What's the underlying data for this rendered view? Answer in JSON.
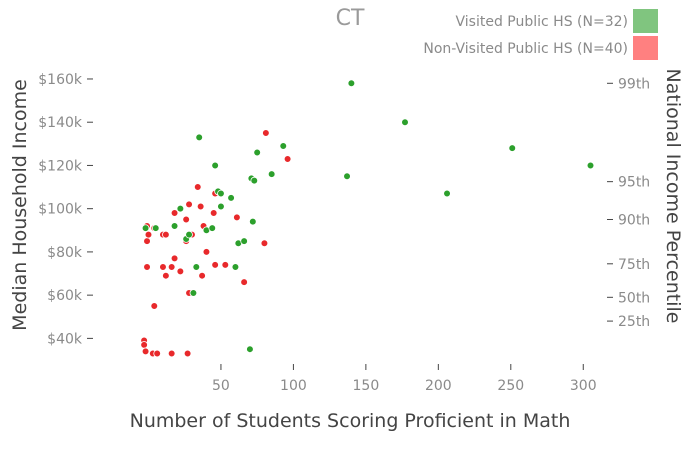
{
  "chart_data": {
    "type": "scatter",
    "title": "CT",
    "xlabel": "Number of Students Scoring Proficient in Math",
    "ylabel": "Median Household Income",
    "y2label": "National Income Percentile",
    "xlim": [
      -30,
      315
    ],
    "ylim": [
      30000,
      166000
    ],
    "x_ticks": [
      50,
      100,
      150,
      200,
      250,
      300
    ],
    "y_ticks": [
      {
        "value": 40000,
        "label": "$40k"
      },
      {
        "value": 60000,
        "label": "$60k"
      },
      {
        "value": 80000,
        "label": "$80k"
      },
      {
        "value": 100000,
        "label": "$100k"
      },
      {
        "value": 120000,
        "label": "$120k"
      },
      {
        "value": 140000,
        "label": "$140k"
      },
      {
        "value": 160000,
        "label": "$160k"
      }
    ],
    "y2_ticks": [
      {
        "value": 158000,
        "label": "99th"
      },
      {
        "value": 112500,
        "label": "95th"
      },
      {
        "value": 95000,
        "label": "90th"
      },
      {
        "value": 74500,
        "label": "75th"
      },
      {
        "value": 59000,
        "label": "50th"
      },
      {
        "value": 48000,
        "label": "25th"
      }
    ],
    "grid": false,
    "legend_position": "top-right",
    "series": [
      {
        "name": "Visited Public HS (N=32)",
        "color": "#2ca02c",
        "legend_color": "#80c57f",
        "points": [
          [
            -2,
            91000
          ],
          [
            5,
            91000
          ],
          [
            18,
            92000
          ],
          [
            26,
            86000
          ],
          [
            28,
            88000
          ],
          [
            22,
            100000
          ],
          [
            33,
            73000
          ],
          [
            31,
            61000
          ],
          [
            40,
            90000
          ],
          [
            44,
            91000
          ],
          [
            48,
            108000
          ],
          [
            50,
            101000
          ],
          [
            50,
            107000
          ],
          [
            46,
            120000
          ],
          [
            35,
            133000
          ],
          [
            57,
            105000
          ],
          [
            60,
            73000
          ],
          [
            62,
            84000
          ],
          [
            66,
            85000
          ],
          [
            70,
            35000
          ],
          [
            71,
            114000
          ],
          [
            73,
            113000
          ],
          [
            75,
            126000
          ],
          [
            72,
            94000
          ],
          [
            85,
            116000
          ],
          [
            93,
            129000
          ],
          [
            137,
            115000
          ],
          [
            140,
            158000
          ],
          [
            177,
            140000
          ],
          [
            206,
            107000
          ],
          [
            251,
            128000
          ],
          [
            305,
            120000
          ]
        ]
      },
      {
        "name": "Non-Visited Public HS (N=40)",
        "color": "#e8292b",
        "legend_color": "#ff8080",
        "points": [
          [
            -3,
            39000
          ],
          [
            -3,
            37000
          ],
          [
            -2,
            34000
          ],
          [
            3,
            33000
          ],
          [
            6,
            33000
          ],
          [
            16,
            33000
          ],
          [
            27,
            33000
          ],
          [
            4,
            55000
          ],
          [
            -1,
            73000
          ],
          [
            10,
            73000
          ],
          [
            16,
            73000
          ],
          [
            22,
            71000
          ],
          [
            28,
            61000
          ],
          [
            37,
            69000
          ],
          [
            -1,
            85000
          ],
          [
            0,
            88000
          ],
          [
            -1,
            92000
          ],
          [
            10,
            88000
          ],
          [
            12,
            88000
          ],
          [
            18,
            77000
          ],
          [
            18,
            98000
          ],
          [
            26,
            95000
          ],
          [
            28,
            102000
          ],
          [
            26,
            85000
          ],
          [
            34,
            110000
          ],
          [
            36,
            101000
          ],
          [
            38,
            92000
          ],
          [
            40,
            80000
          ],
          [
            45,
            98000
          ],
          [
            46,
            74000
          ],
          [
            53,
            74000
          ],
          [
            46,
            107000
          ],
          [
            61,
            96000
          ],
          [
            66,
            66000
          ],
          [
            80,
            84000
          ],
          [
            81,
            135000
          ],
          [
            96,
            123000
          ],
          [
            4,
            91000
          ],
          [
            12,
            69000
          ],
          [
            30,
            88000
          ]
        ]
      }
    ]
  }
}
